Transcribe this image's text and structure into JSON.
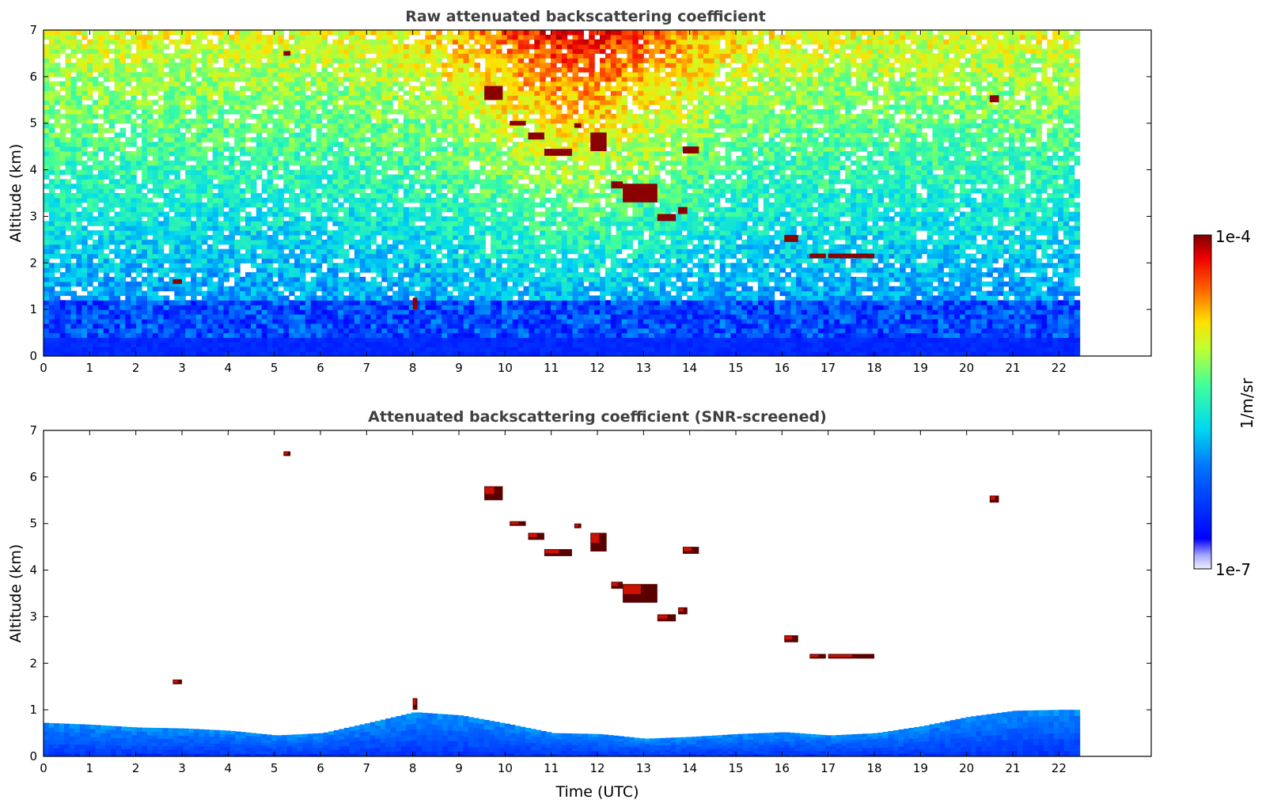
{
  "chart_data": [
    {
      "type": "heatmap",
      "title": "Raw attenuated backscattering coefficient",
      "xlabel": "",
      "ylabel": "Altitude (km)",
      "xlim": [
        0,
        24
      ],
      "ylim": [
        0,
        7
      ],
      "data_xrange": [
        0,
        22.45
      ],
      "xticks": [
        0,
        1,
        2,
        3,
        4,
        5,
        6,
        7,
        8,
        9,
        10,
        11,
        12,
        13,
        14,
        15,
        16,
        17,
        18,
        19,
        20,
        21,
        22
      ],
      "yticks": [
        0,
        1,
        2,
        3,
        4,
        5,
        6,
        7
      ],
      "screened": false,
      "cloud_features": [
        {
          "t": [
            9.55,
            9.95
          ],
          "z": [
            5.5,
            5.8
          ]
        },
        {
          "t": [
            10.1,
            10.45
          ],
          "z": [
            4.95,
            5.05
          ]
        },
        {
          "t": [
            10.5,
            10.85
          ],
          "z": [
            4.65,
            4.8
          ]
        },
        {
          "t": [
            10.85,
            11.45
          ],
          "z": [
            4.3,
            4.45
          ]
        },
        {
          "t": [
            11.5,
            11.65
          ],
          "z": [
            4.9,
            5.0
          ]
        },
        {
          "t": [
            11.85,
            12.2
          ],
          "z": [
            4.4,
            4.8
          ]
        },
        {
          "t": [
            12.3,
            12.55
          ],
          "z": [
            3.6,
            3.75
          ]
        },
        {
          "t": [
            12.55,
            13.3
          ],
          "z": [
            3.3,
            3.7
          ]
        },
        {
          "t": [
            13.3,
            13.7
          ],
          "z": [
            2.9,
            3.05
          ]
        },
        {
          "t": [
            13.75,
            13.95
          ],
          "z": [
            3.05,
            3.2
          ]
        },
        {
          "t": [
            13.85,
            14.2
          ],
          "z": [
            4.35,
            4.5
          ]
        },
        {
          "t": [
            16.05,
            16.35
          ],
          "z": [
            2.45,
            2.6
          ]
        },
        {
          "t": [
            16.6,
            16.95
          ],
          "z": [
            2.1,
            2.2
          ]
        },
        {
          "t": [
            17.0,
            18.0
          ],
          "z": [
            2.1,
            2.2
          ]
        },
        {
          "t": [
            20.5,
            20.7
          ],
          "z": [
            5.45,
            5.6
          ]
        },
        {
          "t": [
            2.8,
            3.0
          ],
          "z": [
            1.55,
            1.65
          ]
        },
        {
          "t": [
            5.2,
            5.35
          ],
          "z": [
            6.45,
            6.55
          ]
        },
        {
          "t": [
            8.0,
            8.1
          ],
          "z": [
            1.0,
            1.25
          ]
        }
      ]
    },
    {
      "type": "heatmap",
      "title": "Attenuated backscattering coefficient (SNR-screened)",
      "xlabel": "Time (UTC)",
      "ylabel": "Altitude (km)",
      "xlim": [
        0,
        24
      ],
      "ylim": [
        0,
        7
      ],
      "data_xrange": [
        0,
        22.45
      ],
      "xticks": [
        0,
        1,
        2,
        3,
        4,
        5,
        6,
        7,
        8,
        9,
        10,
        11,
        12,
        13,
        14,
        15,
        16,
        17,
        18,
        19,
        20,
        21,
        22
      ],
      "yticks": [
        0,
        1,
        2,
        3,
        4,
        5,
        6,
        7
      ],
      "screened": true,
      "boundary_layer_top_km": [
        [
          0,
          0.72
        ],
        [
          1,
          0.68
        ],
        [
          2,
          0.62
        ],
        [
          3,
          0.6
        ],
        [
          4,
          0.55
        ],
        [
          5,
          0.45
        ],
        [
          6,
          0.5
        ],
        [
          7,
          0.72
        ],
        [
          8,
          0.95
        ],
        [
          9,
          0.88
        ],
        [
          10,
          0.7
        ],
        [
          11,
          0.5
        ],
        [
          12,
          0.48
        ],
        [
          13,
          0.38
        ],
        [
          14,
          0.42
        ],
        [
          15,
          0.48
        ],
        [
          16,
          0.52
        ],
        [
          17,
          0.45
        ],
        [
          18,
          0.5
        ],
        [
          19,
          0.65
        ],
        [
          20,
          0.85
        ],
        [
          21,
          0.98
        ],
        [
          22,
          1.0
        ],
        [
          22.45,
          1.0
        ]
      ],
      "cloud_features": [
        {
          "t": [
            9.55,
            9.95
          ],
          "z": [
            5.5,
            5.8
          ]
        },
        {
          "t": [
            10.1,
            10.45
          ],
          "z": [
            4.95,
            5.05
          ]
        },
        {
          "t": [
            10.5,
            10.85
          ],
          "z": [
            4.65,
            4.8
          ]
        },
        {
          "t": [
            10.85,
            11.45
          ],
          "z": [
            4.3,
            4.45
          ]
        },
        {
          "t": [
            11.5,
            11.65
          ],
          "z": [
            4.9,
            5.0
          ]
        },
        {
          "t": [
            11.85,
            12.2
          ],
          "z": [
            4.4,
            4.8
          ]
        },
        {
          "t": [
            12.3,
            12.55
          ],
          "z": [
            3.6,
            3.75
          ]
        },
        {
          "t": [
            12.55,
            13.3
          ],
          "z": [
            3.3,
            3.7
          ]
        },
        {
          "t": [
            13.3,
            13.7
          ],
          "z": [
            2.9,
            3.05
          ]
        },
        {
          "t": [
            13.75,
            13.95
          ],
          "z": [
            3.05,
            3.2
          ]
        },
        {
          "t": [
            13.85,
            14.2
          ],
          "z": [
            4.35,
            4.5
          ]
        },
        {
          "t": [
            16.05,
            16.35
          ],
          "z": [
            2.45,
            2.6
          ]
        },
        {
          "t": [
            16.6,
            16.95
          ],
          "z": [
            2.1,
            2.2
          ]
        },
        {
          "t": [
            17.0,
            18.0
          ],
          "z": [
            2.1,
            2.2
          ]
        },
        {
          "t": [
            20.5,
            20.7
          ],
          "z": [
            5.45,
            5.6
          ]
        },
        {
          "t": [
            2.8,
            3.0
          ],
          "z": [
            1.55,
            1.65
          ]
        },
        {
          "t": [
            5.2,
            5.35
          ],
          "z": [
            6.45,
            6.55
          ]
        },
        {
          "t": [
            8.0,
            8.1
          ],
          "z": [
            1.0,
            1.25
          ]
        }
      ]
    }
  ],
  "colorbar": {
    "max_label": "1e-4",
    "min_label": "1e-7",
    "unit_label": "1/m/sr",
    "colormap": "jet",
    "scale": "log"
  },
  "colors": {
    "cloud": "#8b0000",
    "boundary_layer": "#0a3cff",
    "title": "#404040"
  }
}
